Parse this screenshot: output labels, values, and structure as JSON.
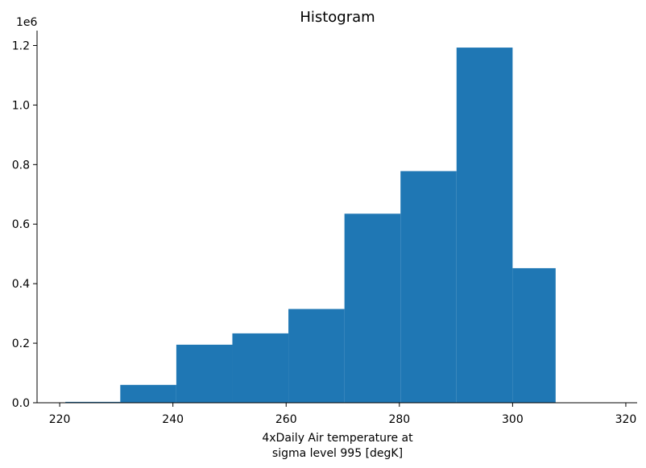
{
  "chart_data": {
    "type": "bar",
    "title": "Histogram",
    "xlabel_line1": "4xDaily Air temperature at",
    "xlabel_line2": "sigma level 995 [degK]",
    "ylabel": "",
    "y_offset_label": "1e6",
    "xlim": [
      216,
      322
    ],
    "ylim": [
      0,
      1.25
    ],
    "x_ticks": [
      220,
      240,
      260,
      280,
      300,
      320
    ],
    "x_tick_labels": [
      "220",
      "240",
      "260",
      "280",
      "300",
      "320"
    ],
    "y_ticks": [
      0.0,
      0.2,
      0.4,
      0.6,
      0.8,
      1.0,
      1.2
    ],
    "y_tick_labels": [
      "0.0",
      "0.2",
      "0.4",
      "0.6",
      "0.8",
      "1.0",
      "1.2"
    ],
    "bin_edges": [
      221.0,
      230.7,
      240.6,
      250.5,
      260.4,
      270.3,
      280.2,
      290.1,
      300.0,
      307.6
    ],
    "values": [
      0.003,
      0.06,
      0.195,
      0.233,
      0.315,
      0.635,
      0.778,
      1.193,
      0.452
    ],
    "bar_color": "#1f77b4",
    "grid": false
  }
}
